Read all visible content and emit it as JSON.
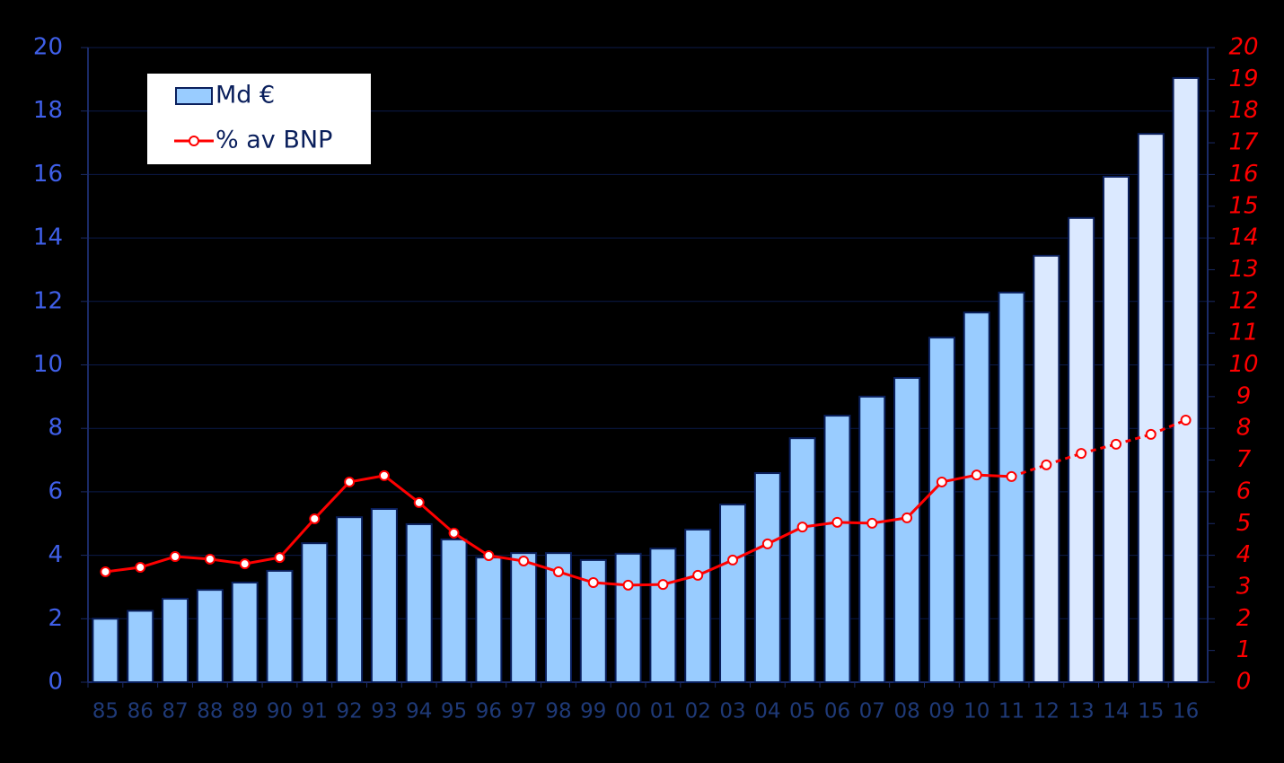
{
  "chart_data": {
    "type": "combo",
    "categories": [
      "85",
      "86",
      "87",
      "88",
      "89",
      "90",
      "91",
      "92",
      "93",
      "94",
      "95",
      "96",
      "97",
      "98",
      "99",
      "00",
      "01",
      "02",
      "03",
      "04",
      "05",
      "06",
      "07",
      "08",
      "09",
      "10",
      "11",
      "12",
      "13",
      "14",
      "15",
      "16"
    ],
    "forecast_from": "12",
    "series": [
      {
        "name": "Md €",
        "type": "bar",
        "color": "#99ccff",
        "forecast_color": "#dbe9ff",
        "values": [
          2.0,
          2.25,
          2.63,
          2.91,
          3.14,
          3.51,
          4.38,
          5.2,
          5.46,
          4.98,
          4.5,
          3.93,
          4.07,
          4.07,
          3.85,
          4.05,
          4.21,
          4.81,
          5.6,
          6.59,
          7.69,
          8.4,
          9.0,
          9.59,
          10.86,
          11.65,
          12.28,
          13.44,
          14.63,
          15.93,
          17.28,
          19.04
        ]
      },
      {
        "name": "% av BNP",
        "type": "line",
        "axis": "y2",
        "color": "#ff0000",
        "values": [
          3.48,
          3.62,
          3.96,
          3.88,
          3.73,
          3.93,
          5.15,
          6.31,
          6.51,
          5.66,
          4.7,
          3.99,
          3.82,
          3.48,
          3.14,
          3.06,
          3.08,
          3.37,
          3.85,
          4.36,
          4.89,
          5.04,
          5.01,
          5.18,
          6.31,
          6.53,
          6.48,
          6.85,
          7.21,
          7.5,
          7.81,
          8.26
        ]
      }
    ],
    "ylim": [
      0,
      20
    ],
    "yticks": [
      0,
      2,
      4,
      6,
      8,
      10,
      12,
      14,
      16,
      18,
      20
    ],
    "y2lim": [
      0,
      20
    ],
    "y2ticks": [
      0,
      1,
      2,
      3,
      4,
      5,
      6,
      7,
      8,
      9,
      10,
      11,
      12,
      13,
      14,
      15,
      16,
      17,
      18,
      19,
      20
    ],
    "grid": true,
    "legend": "upper left"
  }
}
